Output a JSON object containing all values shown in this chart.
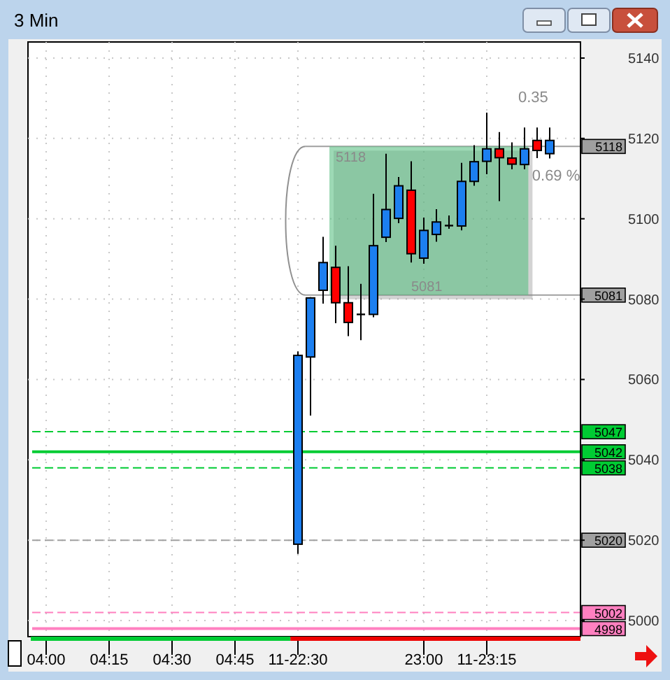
{
  "chart_data": {
    "type": "candlestick",
    "title": "3 Min",
    "categories": [
      "04:00",
      null,
      null,
      null,
      null,
      "04:15",
      null,
      null,
      null,
      null,
      "04:30",
      null,
      null,
      null,
      null,
      "04:45",
      null,
      null,
      null,
      null,
      "11-22:30",
      null,
      null,
      null,
      null,
      null,
      null,
      null,
      null,
      null,
      "23:00",
      null,
      null,
      null,
      null,
      "11-23:15",
      null,
      null,
      null,
      null,
      null,
      null,
      null
    ],
    "ohlc": [
      null,
      null,
      null,
      null,
      null,
      null,
      null,
      null,
      null,
      null,
      null,
      null,
      null,
      null,
      null,
      null,
      null,
      null,
      null,
      null,
      [
        5019,
        5067,
        5016.6,
        5066
      ],
      [
        5065.6,
        5080.5,
        5051,
        5080.3
      ],
      [
        5082.2,
        5095.5,
        5078.9,
        5089.1
      ],
      [
        5087.9,
        5093.3,
        5074,
        5079.1
      ],
      [
        5079.1,
        5088.2,
        5070.8,
        5074.2
      ],
      [
        5076.2,
        5083.8,
        5069.8,
        5076.2
      ],
      [
        5076.2,
        5106.2,
        5075.5,
        5093.3
      ],
      [
        5095.4,
        5116.2,
        5094.2,
        5102.3
      ],
      [
        5100.1,
        5110.4,
        5098.9,
        5108.2
      ],
      [
        5107.1,
        5114.3,
        5089.1,
        5091.3
      ],
      [
        5090.2,
        5100.3,
        5088.8,
        5097.1
      ],
      [
        5096.1,
        5102.4,
        5094.3,
        5099.2
      ],
      [
        5098.3,
        5100.8,
        5097.5,
        5098.3
      ],
      [
        5098.2,
        5113.9,
        5097.1,
        5109.3
      ],
      [
        5109.3,
        5118.3,
        5108.2,
        5114.2
      ],
      [
        5114.3,
        5126.4,
        5111.1,
        5117.4
      ],
      [
        5117.4,
        5121.6,
        5104.4,
        5115.2
      ],
      [
        5115.1,
        5119,
        5112.3,
        5113.6
      ],
      [
        5113.5,
        5122.7,
        5112.3,
        5117.4
      ],
      [
        5119.5,
        5122.7,
        5115.1,
        5117
      ],
      [
        5116.2,
        5122.7,
        5115,
        5119.5
      ],
      null,
      null
    ],
    "colors": [
      null,
      null,
      null,
      null,
      null,
      null,
      null,
      null,
      null,
      null,
      null,
      null,
      null,
      null,
      null,
      null,
      null,
      null,
      null,
      null,
      "#1c7ff0",
      "#1c7ff0",
      "#1c7ff0",
      "#ff0000",
      "#ff0000",
      "#000000",
      "#1c7ff0",
      "#1c7ff0",
      "#1c7ff0",
      "#ff0000",
      "#1c7ff0",
      "#1c7ff0",
      "#000000",
      "#1c7ff0",
      "#1c7ff0",
      "#1c7ff0",
      "#ff0000",
      "#ff0000",
      "#1c7ff0",
      "#ff0000",
      "#1c7ff0",
      null,
      null
    ],
    "ylim": [
      4996,
      5144
    ],
    "yticks": [
      5000,
      5020,
      5040,
      5060,
      5080,
      5100,
      5120,
      5140
    ],
    "grid": true,
    "ref_lines": [
      {
        "axis": "y",
        "value": 5118,
        "label": "5118",
        "color": "#a0a0a0",
        "line_style": "solid"
      },
      {
        "axis": "y",
        "value": 5081,
        "label": "5081",
        "color": "#a0a0a0",
        "line_style": "solid"
      },
      {
        "axis": "y",
        "value": 5047,
        "label": "5047",
        "color": "#00cc33",
        "line_style": "dashed"
      },
      {
        "axis": "y",
        "value": 5042,
        "label": "5042",
        "color": "#00cc33",
        "line_style": "solid"
      },
      {
        "axis": "y",
        "value": 5038,
        "label": "5038",
        "color": "#00cc33",
        "line_style": "dashed"
      },
      {
        "axis": "y",
        "value": 5020,
        "label": "5020",
        "color": "#a0a0a0",
        "line_style": "dashed"
      },
      {
        "axis": "y",
        "value": 5002,
        "label": "5002",
        "color": "#ff80c0",
        "line_style": "dashed"
      },
      {
        "axis": "y",
        "value": 4998,
        "label": "4998",
        "color": "#ff80c0",
        "line_style": "solid"
      }
    ],
    "annotations": [
      {
        "text": "5118",
        "y": 5118
      },
      {
        "text": "5081",
        "y": 5081
      },
      "0.35",
      "0.69 %"
    ]
  }
}
